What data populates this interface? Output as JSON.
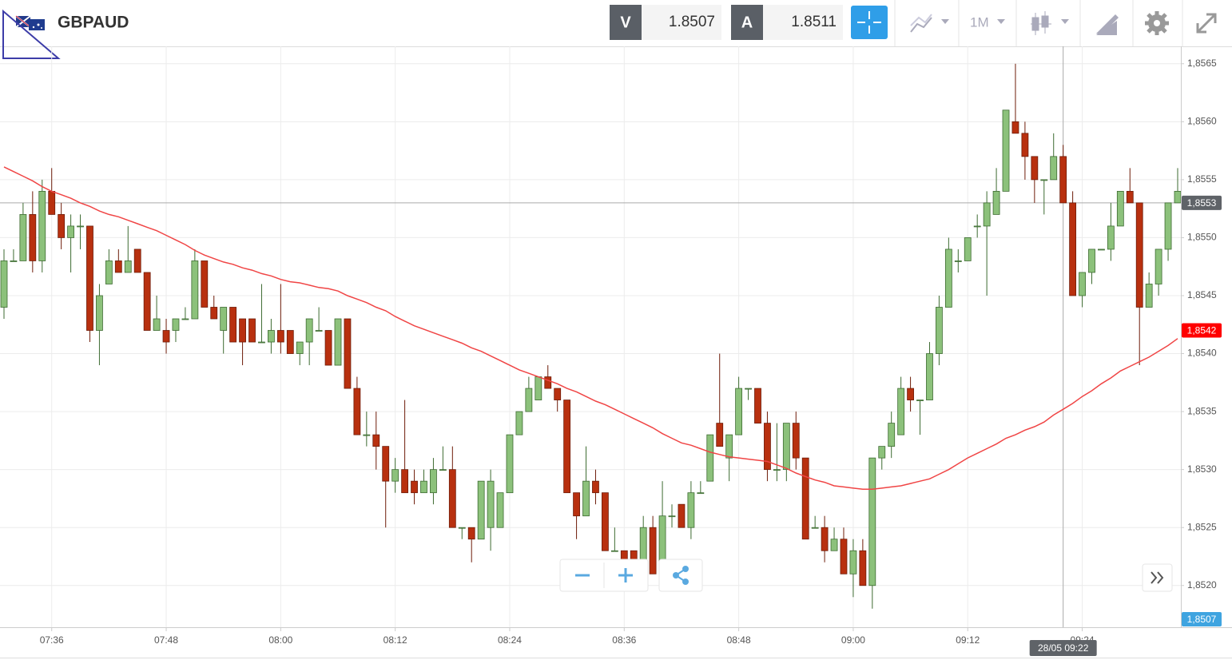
{
  "header": {
    "symbol": "GBPAUD",
    "bid_label": "V",
    "bid": 1.8507,
    "ask_label": "A",
    "ask": 1.8511,
    "timeframe": "1M"
  },
  "chart_data": {
    "type": "candlestick",
    "x": [
      null,
      null,
      null,
      null,
      null,
      "07:36",
      null,
      null,
      null,
      null,
      null,
      null,
      null,
      null,
      null,
      null,
      null,
      "07:48",
      null,
      null,
      null,
      null,
      null,
      null,
      null,
      null,
      null,
      null,
      null,
      "08:00",
      null,
      null,
      null,
      null,
      null,
      null,
      null,
      null,
      null,
      null,
      null,
      "08:12",
      null,
      null,
      null,
      null,
      null,
      null,
      null,
      null,
      null,
      null,
      null,
      "08:24",
      null,
      null,
      null,
      null,
      null,
      null,
      null,
      null,
      null,
      null,
      null,
      "08:36",
      null,
      null,
      null,
      null,
      null,
      null,
      null,
      null,
      null,
      null,
      null,
      "08:48",
      null,
      null,
      null,
      null,
      null,
      null,
      null,
      null,
      null,
      null,
      null,
      "09:00",
      null,
      null,
      null,
      null,
      null,
      null,
      null,
      null,
      null,
      null,
      null,
      "09:12",
      null,
      null,
      null,
      null,
      null,
      null,
      null,
      null,
      null,
      null,
      null,
      "09:24",
      null,
      null,
      null,
      null,
      null,
      null,
      null,
      null,
      null,
      null
    ],
    "open": [
      1.8544,
      1.8548,
      1.8548,
      1.8552,
      1.8548,
      1.8554,
      1.8552,
      1.855,
      1.8551,
      1.8551,
      1.8542,
      1.8546,
      1.8548,
      1.8547,
      1.8549,
      1.8547,
      1.8542,
      1.8542,
      1.8542,
      1.8543,
      1.8543,
      1.8548,
      1.8544,
      1.8542,
      1.8544,
      1.8543,
      1.8543,
      1.8541,
      1.8541,
      1.8542,
      1.8542,
      1.854,
      1.8541,
      1.8542,
      1.8542,
      1.8539,
      1.8543,
      1.8537,
      1.8533,
      1.8533,
      1.8532,
      1.8529,
      1.853,
      1.8529,
      1.8528,
      1.8528,
      1.853,
      1.853,
      1.8525,
      1.8525,
      1.8524,
      1.8525,
      1.8525,
      1.8528,
      1.8533,
      1.8535,
      1.8536,
      1.8538,
      1.8537,
      1.8536,
      1.8528,
      1.8526,
      1.8529,
      1.8528,
      1.8523,
      1.8523,
      1.8523,
      1.8522,
      1.8525,
      1.8521,
      1.8526,
      1.8527,
      1.8525,
      1.8528,
      1.8529,
      1.8534,
      1.8531,
      1.8533,
      1.8537,
      1.8537,
      1.8534,
      1.853,
      1.853,
      1.8534,
      1.8531,
      1.8525,
      1.8525,
      1.8523,
      1.8524,
      1.8521,
      1.8523,
      1.852,
      1.8531,
      1.8532,
      1.8533,
      1.8537,
      1.8536,
      1.8536,
      1.854,
      1.8544,
      1.8548,
      1.8548,
      1.8551,
      1.8551,
      1.8552,
      1.8554,
      1.856,
      1.8559,
      1.8557,
      1.8555,
      1.8555,
      1.8557,
      1.8553,
      1.8545,
      1.8547,
      1.8549,
      1.8549,
      1.8551,
      1.8554,
      1.8553,
      1.8544,
      1.8546,
      1.8549,
      1.8553
    ],
    "high": [
      1.8549,
      1.8549,
      1.8553,
      1.8554,
      1.8555,
      1.8556,
      1.8553,
      1.8552,
      1.8552,
      1.8551,
      1.8546,
      1.8549,
      1.8549,
      1.8551,
      1.8549,
      1.8547,
      1.8545,
      1.8543,
      1.8543,
      1.8544,
      1.8549,
      1.8548,
      1.8545,
      1.8544,
      1.8544,
      1.8543,
      1.8543,
      1.8546,
      1.8543,
      1.8546,
      1.8542,
      1.8541,
      1.8543,
      1.8544,
      1.8542,
      1.8543,
      1.8543,
      1.8538,
      1.8535,
      1.8535,
      1.8532,
      1.8531,
      1.8536,
      1.853,
      1.853,
      1.8531,
      1.8532,
      1.8532,
      1.8525,
      1.8525,
      1.8529,
      1.853,
      1.8528,
      1.8533,
      1.8535,
      1.8538,
      1.8538,
      1.8539,
      1.8537,
      1.8536,
      1.8528,
      1.8532,
      1.853,
      1.8528,
      1.8525,
      1.8523,
      1.8523,
      1.8526,
      1.8526,
      1.8529,
      1.8527,
      1.8527,
      1.8529,
      1.8529,
      1.8533,
      1.854,
      1.8533,
      1.8538,
      1.8537,
      1.8537,
      1.8535,
      1.8534,
      1.8534,
      1.8535,
      1.8531,
      1.8526,
      1.8526,
      1.8525,
      1.8525,
      1.8524,
      1.8524,
      1.8531,
      1.8532,
      1.8535,
      1.8538,
      1.8538,
      1.8536,
      1.8541,
      1.8545,
      1.855,
      1.8549,
      1.855,
      1.8552,
      1.8554,
      1.8556,
      1.8561,
      1.8565,
      1.856,
      1.8557,
      1.8555,
      1.8559,
      1.8558,
      1.8554,
      1.8547,
      1.8549,
      1.8549,
      1.8553,
      1.8554,
      1.8556,
      1.8553,
      1.8547,
      1.8549,
      1.8553,
      1.8556
    ],
    "low": [
      1.8543,
      1.8548,
      1.8548,
      1.8547,
      1.8547,
      1.8552,
      1.8549,
      1.8547,
      1.8549,
      1.8541,
      1.8539,
      1.8546,
      1.8547,
      1.8547,
      1.8547,
      1.8542,
      1.8542,
      1.854,
      1.8541,
      1.8543,
      1.8543,
      1.8544,
      1.8543,
      1.854,
      1.8541,
      1.8539,
      1.8541,
      1.8541,
      1.854,
      1.854,
      1.854,
      1.8539,
      1.8539,
      1.8542,
      1.8539,
      1.8539,
      1.8537,
      1.8533,
      1.8532,
      1.853,
      1.8525,
      1.8528,
      1.8528,
      1.8527,
      1.8528,
      1.8527,
      1.853,
      1.8525,
      1.8524,
      1.8522,
      1.8524,
      1.8523,
      1.8525,
      1.8528,
      1.8533,
      1.8535,
      1.8536,
      1.8537,
      1.8535,
      1.8528,
      1.8524,
      1.8526,
      1.8527,
      1.8523,
      1.8523,
      1.8522,
      1.8522,
      1.8522,
      1.8521,
      1.8521,
      1.8525,
      1.8525,
      1.8524,
      1.8528,
      1.8529,
      1.8532,
      1.8529,
      1.8533,
      1.8536,
      1.8534,
      1.8529,
      1.8529,
      1.8529,
      1.853,
      1.8524,
      1.8525,
      1.8522,
      1.8523,
      1.8521,
      1.8519,
      1.852,
      1.8518,
      1.853,
      1.8531,
      1.8533,
      1.8535,
      1.8533,
      1.8536,
      1.8539,
      1.8544,
      1.8547,
      1.8548,
      1.855,
      1.8545,
      1.8552,
      1.8554,
      1.8559,
      1.8555,
      1.8553,
      1.8552,
      1.8555,
      1.8553,
      1.8545,
      1.8544,
      1.8546,
      1.8549,
      1.8548,
      1.8551,
      1.8553,
      1.8539,
      1.8544,
      1.8545,
      1.8548,
      1.8553
    ],
    "close": [
      1.8548,
      1.8548,
      1.8552,
      1.8548,
      1.8554,
      1.8552,
      1.855,
      1.8551,
      1.8551,
      1.8542,
      1.8545,
      1.8548,
      1.8547,
      1.8548,
      1.8547,
      1.8542,
      1.8543,
      1.8541,
      1.8543,
      1.8543,
      1.8548,
      1.8544,
      1.8543,
      1.8544,
      1.8541,
      1.8541,
      1.8541,
      1.8541,
      1.8542,
      1.8541,
      1.854,
      1.8541,
      1.8543,
      1.8542,
      1.8539,
      1.8543,
      1.8537,
      1.8533,
      1.8533,
      1.8532,
      1.8529,
      1.853,
      1.8528,
      1.8528,
      1.8529,
      1.853,
      1.853,
      1.8525,
      1.8525,
      1.8524,
      1.8529,
      1.8529,
      1.8528,
      1.8533,
      1.8535,
      1.8537,
      1.8538,
      1.8537,
      1.8536,
      1.8528,
      1.8526,
      1.8529,
      1.8528,
      1.8523,
      1.8523,
      1.8522,
      1.8522,
      1.8525,
      1.8521,
      1.8526,
      1.8526,
      1.8525,
      1.8528,
      1.8528,
      1.8533,
      1.8532,
      1.8533,
      1.8537,
      1.8537,
      1.8534,
      1.853,
      1.853,
      1.8534,
      1.8531,
      1.8524,
      1.8525,
      1.8523,
      1.8524,
      1.8521,
      1.8523,
      1.852,
      1.8531,
      1.8532,
      1.8534,
      1.8537,
      1.8536,
      1.8536,
      1.854,
      1.8544,
      1.8549,
      1.8548,
      1.855,
      1.8551,
      1.8553,
      1.8554,
      1.8561,
      1.8559,
      1.8557,
      1.8555,
      1.8555,
      1.8557,
      1.8553,
      1.8545,
      1.8547,
      1.8549,
      1.8549,
      1.8551,
      1.8554,
      1.8553,
      1.8544,
      1.8546,
      1.8549,
      1.8553,
      1.8554
    ],
    "up_color": "#8cc17b",
    "down_color": "#b8300f",
    "ma": {
      "color": "#f04545",
      "values": [
        1.85561,
        1.85557,
        1.85553,
        1.85549,
        1.85544,
        1.8554,
        1.85537,
        1.85534,
        1.8553,
        1.85527,
        1.85523,
        1.8552,
        1.85518,
        1.85515,
        1.85512,
        1.85509,
        1.85506,
        1.85502,
        1.85498,
        1.85494,
        1.85489,
        1.85485,
        1.85482,
        1.85479,
        1.85477,
        1.85474,
        1.85472,
        1.85469,
        1.85467,
        1.85464,
        1.85462,
        1.85461,
        1.85459,
        1.85457,
        1.85456,
        1.85454,
        1.8545,
        1.85447,
        1.85444,
        1.8544,
        1.85437,
        1.85432,
        1.85428,
        1.85424,
        1.85421,
        1.85418,
        1.85415,
        1.85412,
        1.85409,
        1.85405,
        1.85402,
        1.85398,
        1.85394,
        1.8539,
        1.85386,
        1.85383,
        1.8538,
        1.85377,
        1.85374,
        1.8537,
        1.85367,
        1.85363,
        1.85359,
        1.85356,
        1.85352,
        1.85348,
        1.85344,
        1.8534,
        1.85336,
        1.85331,
        1.85327,
        1.85323,
        1.85321,
        1.85318,
        1.85315,
        1.85313,
        1.85311,
        1.8531,
        1.85309,
        1.85308,
        1.85307,
        1.85304,
        1.85301,
        1.85297,
        1.85294,
        1.85291,
        1.85289,
        1.85286,
        1.85285,
        1.85284,
        1.85283,
        1.85283,
        1.85284,
        1.85285,
        1.85286,
        1.85288,
        1.8529,
        1.85292,
        1.85296,
        1.853,
        1.85305,
        1.8531,
        1.85314,
        1.85318,
        1.85322,
        1.85327,
        1.8533,
        1.85334,
        1.85337,
        1.85341,
        1.85347,
        1.85352,
        1.85357,
        1.85363,
        1.85368,
        1.85374,
        1.85379,
        1.85385,
        1.85389,
        1.85393,
        1.85397,
        1.85402,
        1.85407,
        1.85413
      ]
    },
    "ylim": [
      1.85164,
      1.85665
    ],
    "yticks": [
      {
        "value": 1.852,
        "label": "1,8520"
      },
      {
        "value": 1.8525,
        "label": "1,8525"
      },
      {
        "value": 1.853,
        "label": "1,8530"
      },
      {
        "value": 1.8535,
        "label": "1,8535"
      },
      {
        "value": 1.854,
        "label": "1,8540"
      },
      {
        "value": 1.8545,
        "label": "1,8545"
      },
      {
        "value": 1.855,
        "label": "1,8550"
      },
      {
        "value": 1.8555,
        "label": "1,8555"
      },
      {
        "value": 1.856,
        "label": "1,8560"
      },
      {
        "value": 1.8565,
        "label": "1,8565"
      }
    ],
    "grid": true,
    "price_tags": [
      {
        "value": 1.8542,
        "label": "1,8542",
        "color": "#ff0000"
      }
    ],
    "bottom_tag": "1,8507",
    "crosshair": {
      "time_label": "28/05 09:22",
      "price": 1.8553,
      "price_label": "1,8553"
    }
  }
}
